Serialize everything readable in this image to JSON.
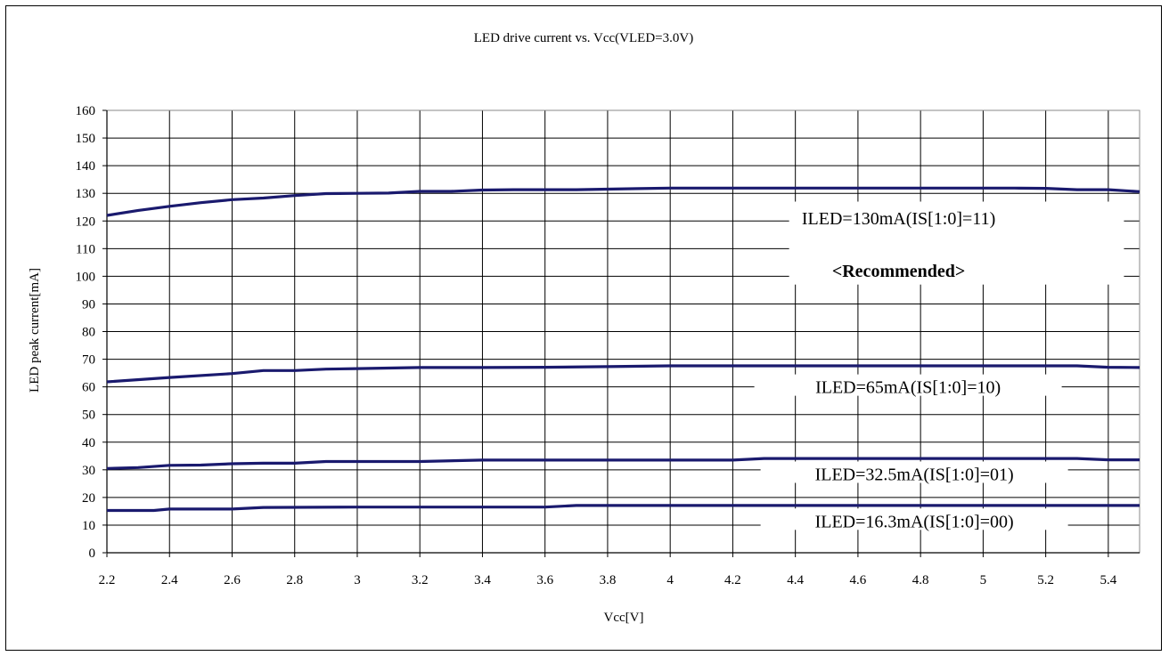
{
  "chart_data": {
    "type": "line",
    "title": "LED drive current vs. Vcc(VLED=3.0V)",
    "xlabel": "Vcc[V]",
    "ylabel": "LED peak current[mA]",
    "xlim": [
      2.2,
      5.5
    ],
    "ylim": [
      0,
      160
    ],
    "xticks": [
      2.2,
      2.4,
      2.6,
      2.8,
      3,
      3.2,
      3.4,
      3.6,
      3.8,
      4,
      4.2,
      4.4,
      4.6,
      4.8,
      5,
      5.2,
      5.4
    ],
    "yticks": [
      0,
      10,
      20,
      30,
      40,
      50,
      60,
      70,
      80,
      90,
      100,
      110,
      120,
      130,
      140,
      150,
      160
    ],
    "grid": true,
    "line_color": "#1a1a6e",
    "series": [
      {
        "name": "ILED=130mA(IS[1:0]=11)",
        "x": [
          2.2,
          2.3,
          2.4,
          2.5,
          2.6,
          2.7,
          2.8,
          2.9,
          3.0,
          3.1,
          3.2,
          3.3,
          3.4,
          3.5,
          3.6,
          3.7,
          3.8,
          3.9,
          4.0,
          4.2,
          4.4,
          4.6,
          4.8,
          5.0,
          5.1,
          5.2,
          5.3,
          5.4,
          5.5
        ],
        "y": [
          122,
          123.8,
          125.3,
          126.6,
          127.7,
          128.3,
          129.2,
          129.9,
          130.0,
          130.1,
          130.7,
          130.7,
          131.2,
          131.3,
          131.3,
          131.3,
          131.5,
          131.7,
          131.9,
          131.9,
          131.9,
          131.9,
          131.9,
          131.9,
          131.9,
          131.8,
          131.3,
          131.3,
          130.6
        ]
      },
      {
        "name": "ILED=65mA(IS[1:0]=10)",
        "x": [
          2.2,
          2.4,
          2.6,
          2.7,
          2.8,
          2.9,
          3.0,
          3.2,
          3.4,
          3.6,
          3.8,
          4.0,
          4.5,
          5.0,
          5.3,
          5.4,
          5.5
        ],
        "y": [
          61.8,
          63.4,
          64.8,
          65.9,
          65.9,
          66.4,
          66.6,
          67.0,
          67.0,
          67.1,
          67.3,
          67.6,
          67.6,
          67.6,
          67.6,
          67.1,
          67.0
        ]
      },
      {
        "name": "ILED=32.5mA(IS[1:0]=01)",
        "x": [
          2.2,
          2.3,
          2.4,
          2.5,
          2.6,
          2.7,
          2.8,
          2.9,
          3.0,
          3.2,
          3.4,
          3.6,
          3.8,
          4.0,
          4.2,
          4.3,
          4.6,
          5.0,
          5.3,
          5.4,
          5.5
        ],
        "y": [
          30.5,
          30.8,
          31.6,
          31.7,
          32.2,
          32.4,
          32.4,
          33.0,
          33.0,
          33.0,
          33.5,
          33.5,
          33.5,
          33.5,
          33.5,
          34.1,
          34.1,
          34.1,
          34.1,
          33.6,
          33.6
        ]
      },
      {
        "name": "ILED=16.3mA(IS[1:0]=00)",
        "x": [
          2.2,
          2.35,
          2.4,
          2.6,
          2.7,
          3.0,
          3.6,
          3.7,
          4.0,
          5.0,
          5.5
        ],
        "y": [
          15.3,
          15.3,
          15.8,
          15.8,
          16.4,
          16.5,
          16.5,
          17.1,
          17.1,
          17.1,
          17.1
        ]
      }
    ],
    "annotations": [
      {
        "text": "ILED=130mA(IS[1:0]=11)",
        "x": 4.73,
        "y": 121,
        "bold": false
      },
      {
        "text": "<Recommended>",
        "x": 4.73,
        "y": 102,
        "bold": true
      },
      {
        "text": "ILED=65mA(IS[1:0]=10)",
        "x": 4.76,
        "y": 60,
        "bold": false
      },
      {
        "text": "ILED=32.5mA(IS[1:0]=01)",
        "x": 4.78,
        "y": 28.5,
        "bold": false
      },
      {
        "text": "ILED=16.3mA(IS[1:0]=00)",
        "x": 4.78,
        "y": 11.5,
        "bold": false
      }
    ]
  }
}
